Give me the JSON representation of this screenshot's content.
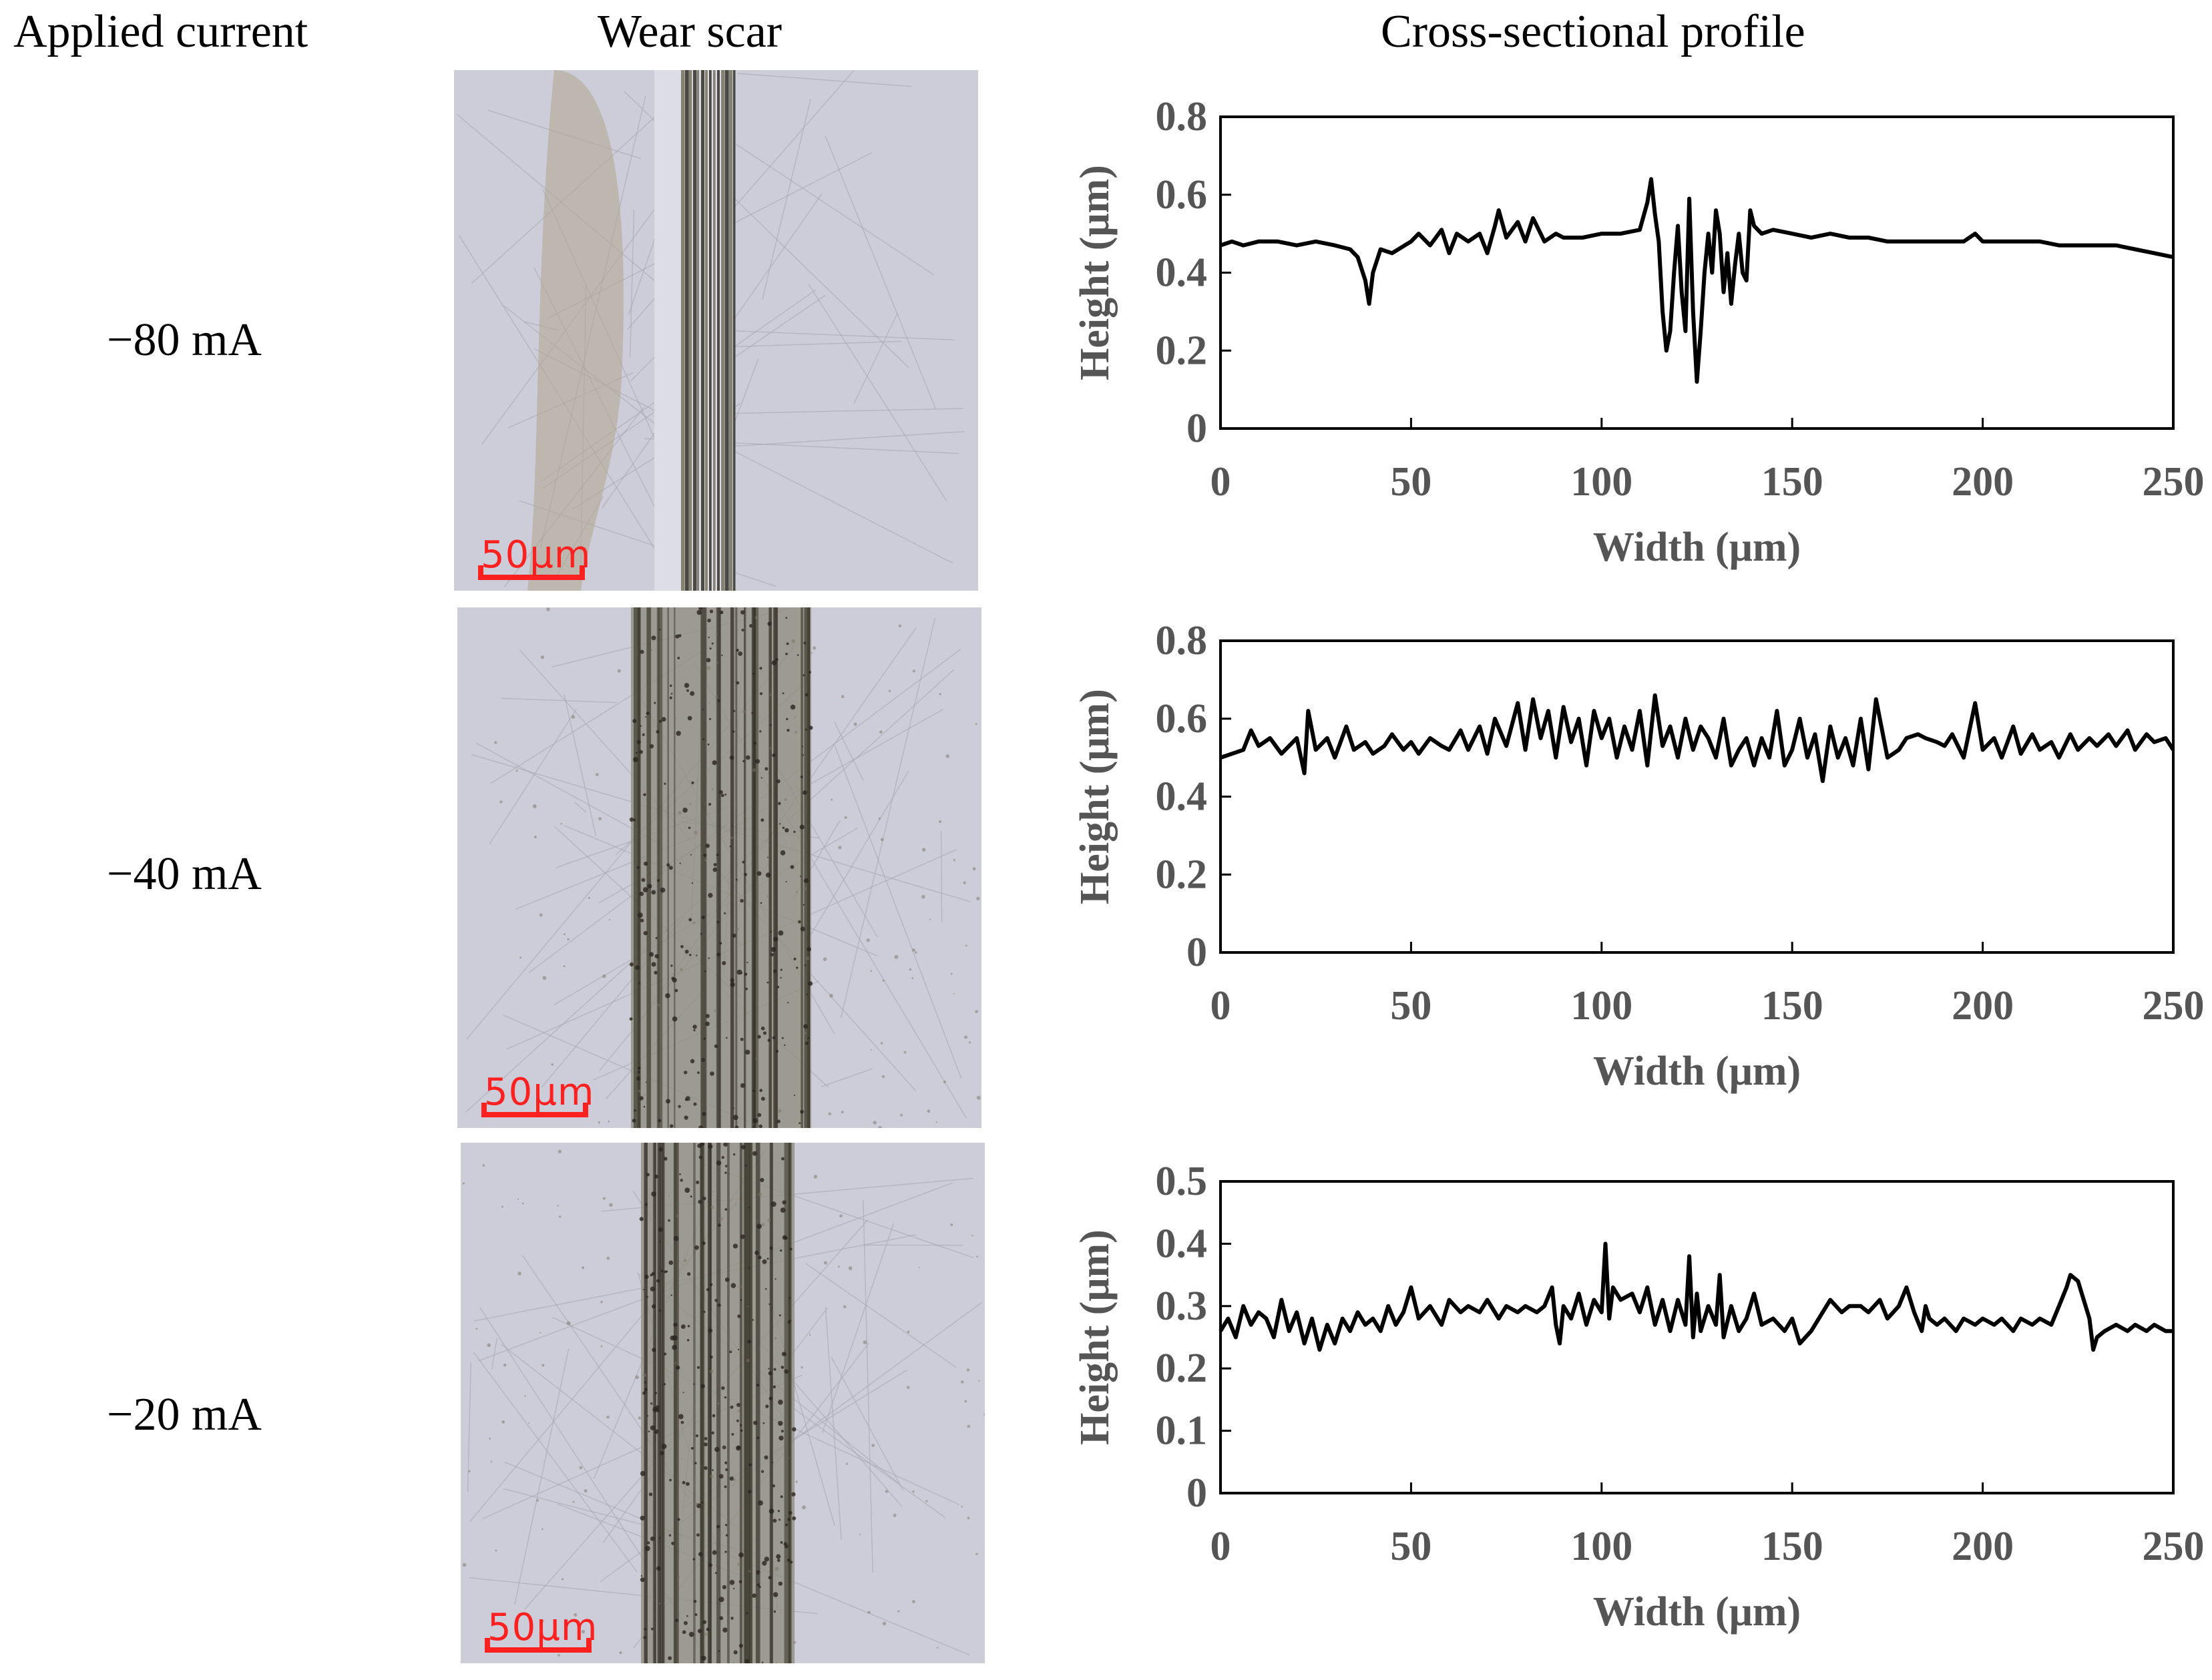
{
  "headers": {
    "applied_current": "Applied current",
    "wear_scar": "Wear scar",
    "profile": "Cross-sectional profile"
  },
  "rows": [
    {
      "label": "−80 mA",
      "scale_text": "50μm"
    },
    {
      "label": "−40 mA",
      "scale_text": "50μm"
    },
    {
      "label": "−20 mA",
      "scale_text": "50μm"
    }
  ],
  "colors": {
    "line": "#000000",
    "scale_bar": "#ff2020",
    "axis_text": "#555555"
  },
  "chart_data": [
    {
      "type": "line",
      "xlabel": "Width (μm)",
      "ylabel": "Height (μm)",
      "xlim": [
        0,
        250
      ],
      "ylim": [
        0,
        0.8
      ],
      "xticks": [
        "0",
        "50",
        "100",
        "150",
        "200",
        "250"
      ],
      "yticks": [
        "0",
        "0.2",
        "0.4",
        "0.6",
        "0.8"
      ],
      "x": [
        0,
        3,
        6,
        10,
        15,
        20,
        25,
        30,
        34,
        36,
        38,
        39,
        40,
        42,
        45,
        50,
        52,
        55,
        58,
        60,
        62,
        65,
        68,
        70,
        72,
        73,
        75,
        78,
        80,
        82,
        85,
        88,
        90,
        95,
        100,
        105,
        110,
        112,
        113,
        114,
        115,
        116,
        117,
        118,
        119,
        120,
        121,
        122,
        123,
        124,
        125,
        126,
        127,
        128,
        129,
        130,
        131,
        132,
        133,
        134,
        135,
        136,
        137,
        138,
        139,
        140,
        142,
        145,
        150,
        155,
        160,
        165,
        170,
        175,
        180,
        185,
        190,
        195,
        198,
        200,
        205,
        210,
        215,
        220,
        225,
        230,
        235,
        240,
        245,
        250
      ],
      "y": [
        0.47,
        0.48,
        0.47,
        0.48,
        0.48,
        0.47,
        0.48,
        0.47,
        0.46,
        0.44,
        0.38,
        0.32,
        0.4,
        0.46,
        0.45,
        0.48,
        0.5,
        0.47,
        0.51,
        0.45,
        0.5,
        0.48,
        0.5,
        0.45,
        0.52,
        0.56,
        0.49,
        0.53,
        0.48,
        0.54,
        0.48,
        0.5,
        0.49,
        0.49,
        0.5,
        0.5,
        0.51,
        0.58,
        0.64,
        0.55,
        0.48,
        0.3,
        0.2,
        0.25,
        0.4,
        0.52,
        0.35,
        0.25,
        0.59,
        0.3,
        0.12,
        0.25,
        0.4,
        0.5,
        0.4,
        0.56,
        0.5,
        0.35,
        0.45,
        0.32,
        0.42,
        0.5,
        0.4,
        0.38,
        0.56,
        0.52,
        0.5,
        0.51,
        0.5,
        0.49,
        0.5,
        0.49,
        0.49,
        0.48,
        0.48,
        0.48,
        0.48,
        0.48,
        0.5,
        0.48,
        0.48,
        0.48,
        0.48,
        0.47,
        0.47,
        0.47,
        0.47,
        0.46,
        0.45,
        0.44
      ]
    },
    {
      "type": "line",
      "xlabel": "Width (μm)",
      "ylabel": "Height (μm)",
      "xlim": [
        0,
        250
      ],
      "ylim": [
        0,
        0.8
      ],
      "xticks": [
        "0",
        "50",
        "100",
        "150",
        "200",
        "250"
      ],
      "yticks": [
        "0",
        "0.2",
        "0.4",
        "0.6",
        "0.8"
      ],
      "x": [
        0,
        3,
        6,
        8,
        10,
        13,
        16,
        20,
        22,
        23,
        25,
        28,
        30,
        33,
        35,
        38,
        40,
        43,
        45,
        48,
        50,
        52,
        55,
        58,
        60,
        63,
        65,
        68,
        70,
        72,
        75,
        78,
        80,
        82,
        84,
        86,
        88,
        90,
        92,
        94,
        96,
        98,
        100,
        102,
        104,
        106,
        108,
        110,
        112,
        114,
        116,
        118,
        120,
        122,
        124,
        126,
        128,
        130,
        132,
        134,
        136,
        138,
        140,
        142,
        144,
        146,
        148,
        150,
        152,
        154,
        156,
        158,
        160,
        162,
        164,
        166,
        168,
        170,
        172,
        175,
        178,
        180,
        183,
        185,
        188,
        190,
        192,
        195,
        198,
        200,
        203,
        205,
        208,
        210,
        213,
        215,
        218,
        220,
        223,
        225,
        228,
        230,
        233,
        235,
        238,
        240,
        243,
        245,
        248,
        250
      ],
      "y": [
        0.5,
        0.51,
        0.52,
        0.57,
        0.53,
        0.55,
        0.51,
        0.55,
        0.46,
        0.62,
        0.52,
        0.55,
        0.5,
        0.58,
        0.52,
        0.54,
        0.51,
        0.53,
        0.56,
        0.52,
        0.54,
        0.51,
        0.55,
        0.53,
        0.52,
        0.57,
        0.52,
        0.58,
        0.51,
        0.6,
        0.53,
        0.64,
        0.52,
        0.65,
        0.55,
        0.62,
        0.5,
        0.63,
        0.54,
        0.6,
        0.48,
        0.62,
        0.55,
        0.6,
        0.5,
        0.58,
        0.52,
        0.62,
        0.48,
        0.66,
        0.53,
        0.58,
        0.5,
        0.6,
        0.52,
        0.58,
        0.55,
        0.5,
        0.6,
        0.48,
        0.52,
        0.55,
        0.48,
        0.55,
        0.5,
        0.62,
        0.48,
        0.52,
        0.6,
        0.5,
        0.56,
        0.44,
        0.58,
        0.5,
        0.55,
        0.48,
        0.6,
        0.47,
        0.65,
        0.5,
        0.52,
        0.55,
        0.56,
        0.55,
        0.54,
        0.53,
        0.56,
        0.5,
        0.64,
        0.52,
        0.55,
        0.5,
        0.58,
        0.51,
        0.56,
        0.52,
        0.54,
        0.5,
        0.56,
        0.52,
        0.55,
        0.53,
        0.56,
        0.53,
        0.57,
        0.52,
        0.56,
        0.54,
        0.55,
        0.52
      ]
    },
    {
      "type": "line",
      "xlabel": "Width (μm)",
      "ylabel": "Height (μm)",
      "xlim": [
        0,
        250
      ],
      "ylim": [
        0,
        0.5
      ],
      "xticks": [
        "0",
        "50",
        "100",
        "150",
        "200",
        "250"
      ],
      "yticks": [
        "0",
        "0.1",
        "0.2",
        "0.3",
        "0.4",
        "0.5"
      ],
      "x": [
        0,
        2,
        4,
        6,
        8,
        10,
        12,
        14,
        16,
        18,
        20,
        22,
        24,
        26,
        28,
        30,
        32,
        34,
        36,
        38,
        40,
        42,
        44,
        46,
        48,
        50,
        52,
        55,
        58,
        60,
        63,
        65,
        68,
        70,
        73,
        75,
        78,
        80,
        83,
        85,
        87,
        88,
        89,
        90,
        92,
        94,
        96,
        98,
        100,
        101,
        102,
        103,
        105,
        108,
        110,
        112,
        114,
        116,
        118,
        120,
        122,
        123,
        124,
        125,
        126,
        128,
        130,
        131,
        132,
        134,
        136,
        138,
        140,
        142,
        145,
        148,
        150,
        152,
        155,
        158,
        160,
        163,
        165,
        168,
        170,
        173,
        175,
        178,
        180,
        182,
        184,
        185,
        186,
        188,
        190,
        193,
        195,
        198,
        200,
        203,
        205,
        208,
        210,
        213,
        215,
        218,
        220,
        222,
        223,
        225,
        226,
        227,
        228,
        229,
        230,
        232,
        235,
        238,
        240,
        243,
        245,
        248,
        250
      ],
      "y": [
        0.26,
        0.28,
        0.25,
        0.3,
        0.27,
        0.29,
        0.28,
        0.25,
        0.31,
        0.26,
        0.29,
        0.24,
        0.28,
        0.23,
        0.27,
        0.24,
        0.28,
        0.26,
        0.29,
        0.27,
        0.28,
        0.26,
        0.3,
        0.27,
        0.29,
        0.33,
        0.28,
        0.3,
        0.27,
        0.31,
        0.29,
        0.3,
        0.29,
        0.31,
        0.28,
        0.3,
        0.29,
        0.3,
        0.29,
        0.3,
        0.33,
        0.27,
        0.24,
        0.3,
        0.28,
        0.32,
        0.27,
        0.31,
        0.29,
        0.4,
        0.28,
        0.33,
        0.31,
        0.32,
        0.29,
        0.33,
        0.27,
        0.31,
        0.26,
        0.31,
        0.27,
        0.38,
        0.25,
        0.32,
        0.26,
        0.3,
        0.27,
        0.35,
        0.25,
        0.3,
        0.26,
        0.28,
        0.32,
        0.27,
        0.28,
        0.26,
        0.28,
        0.24,
        0.26,
        0.29,
        0.31,
        0.29,
        0.3,
        0.3,
        0.29,
        0.31,
        0.28,
        0.3,
        0.33,
        0.29,
        0.26,
        0.3,
        0.28,
        0.27,
        0.28,
        0.26,
        0.28,
        0.27,
        0.28,
        0.27,
        0.28,
        0.26,
        0.28,
        0.27,
        0.28,
        0.27,
        0.3,
        0.33,
        0.35,
        0.34,
        0.32,
        0.3,
        0.28,
        0.23,
        0.25,
        0.26,
        0.27,
        0.26,
        0.27,
        0.26,
        0.27,
        0.26,
        0.26
      ]
    }
  ]
}
